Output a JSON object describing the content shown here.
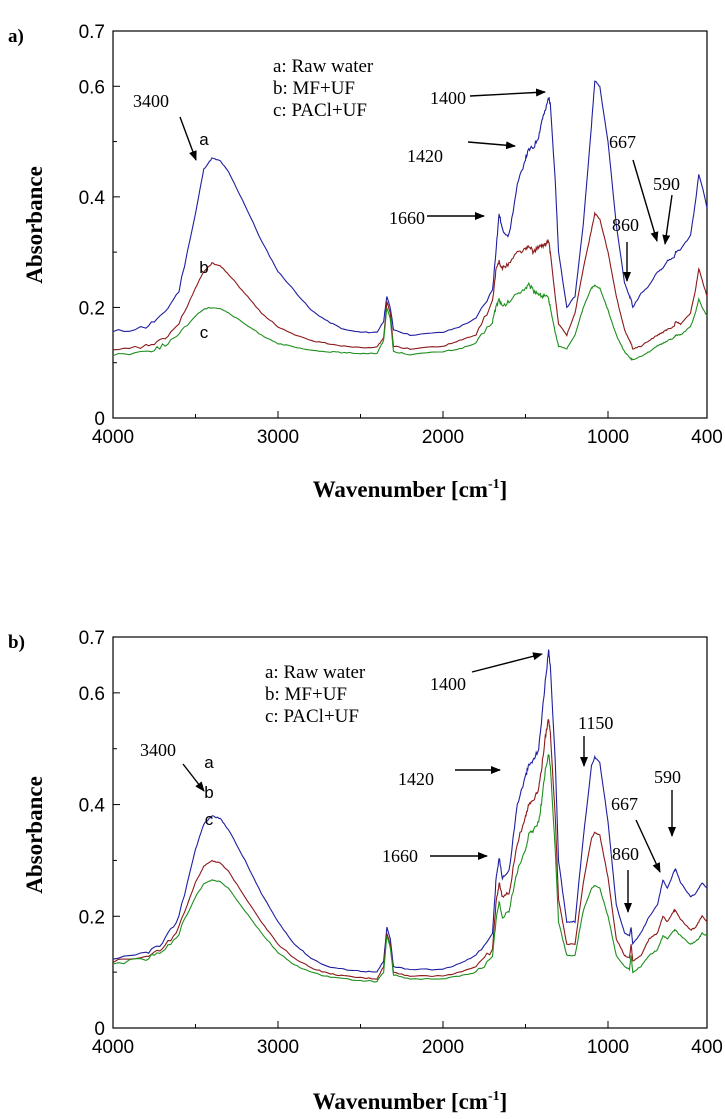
{
  "chart_data": [
    {
      "type": "line",
      "panel_label": "a)",
      "xlabel": "Wavenumber [cm",
      "xlabel_sup": "-1",
      "xlabel_end": "]",
      "ylabel": "Absorbance",
      "xlim": [
        4000,
        400
      ],
      "ylim": [
        0,
        0.7
      ],
      "x_ticks": [
        4000,
        3000,
        2000,
        1000,
        400
      ],
      "x_tick_labels": [
        "4000",
        "3000",
        "2000",
        "1000",
        "400"
      ],
      "y_ticks": [
        0,
        0.2,
        0.4,
        0.6,
        0.7
      ],
      "y_tick_labels": [
        "0",
        "0.2",
        "0.4",
        "0.6",
        "0.7"
      ],
      "grid": false,
      "legend": [
        "a: Raw water",
        "b: MF+UF",
        "c: PACl+UF"
      ],
      "curve_tags": [
        "a",
        "b",
        "c"
      ],
      "series": [
        {
          "name": "a: Raw water",
          "color": "#1f1fa0",
          "x": [
            4000,
            3800,
            3700,
            3600,
            3500,
            3450,
            3400,
            3350,
            3300,
            3200,
            3100,
            3000,
            2900,
            2800,
            2700,
            2600,
            2500,
            2400,
            2360,
            2340,
            2320,
            2300,
            2200,
            2000,
            1900,
            1800,
            1700,
            1680,
            1660,
            1640,
            1600,
            1550,
            1500,
            1480,
            1450,
            1420,
            1400,
            1380,
            1360,
            1350,
            1320,
            1300,
            1250,
            1200,
            1150,
            1100,
            1080,
            1050,
            1000,
            950,
            900,
            870,
            860,
            850,
            800,
            750,
            700,
            667,
            640,
            600,
            590,
            560,
            500,
            470,
            450,
            430,
            400
          ],
          "y": [
            0.155,
            0.165,
            0.185,
            0.23,
            0.37,
            0.45,
            0.47,
            0.465,
            0.445,
            0.385,
            0.32,
            0.265,
            0.23,
            0.195,
            0.175,
            0.16,
            0.155,
            0.155,
            0.175,
            0.22,
            0.2,
            0.16,
            0.15,
            0.155,
            0.165,
            0.18,
            0.23,
            0.3,
            0.37,
            0.34,
            0.33,
            0.42,
            0.47,
            0.485,
            0.49,
            0.51,
            0.54,
            0.555,
            0.58,
            0.57,
            0.43,
            0.3,
            0.2,
            0.22,
            0.35,
            0.53,
            0.61,
            0.6,
            0.5,
            0.35,
            0.245,
            0.22,
            0.215,
            0.2,
            0.225,
            0.24,
            0.265,
            0.27,
            0.285,
            0.29,
            0.3,
            0.305,
            0.33,
            0.39,
            0.44,
            0.42,
            0.38
          ]
        },
        {
          "name": "b: MF+UF",
          "color": "#8b1a1a",
          "x": [
            4000,
            3800,
            3700,
            3600,
            3500,
            3450,
            3400,
            3350,
            3300,
            3200,
            3100,
            3000,
            2900,
            2800,
            2700,
            2600,
            2500,
            2400,
            2360,
            2340,
            2320,
            2300,
            2200,
            2000,
            1900,
            1800,
            1700,
            1680,
            1660,
            1640,
            1600,
            1550,
            1500,
            1480,
            1450,
            1420,
            1400,
            1380,
            1360,
            1350,
            1320,
            1300,
            1250,
            1200,
            1150,
            1100,
            1080,
            1050,
            1000,
            950,
            900,
            870,
            860,
            850,
            800,
            750,
            700,
            667,
            640,
            600,
            590,
            560,
            500,
            470,
            450,
            430,
            400
          ],
          "y": [
            0.12,
            0.13,
            0.14,
            0.17,
            0.235,
            0.265,
            0.28,
            0.275,
            0.26,
            0.225,
            0.19,
            0.165,
            0.15,
            0.14,
            0.135,
            0.13,
            0.128,
            0.128,
            0.145,
            0.21,
            0.19,
            0.13,
            0.125,
            0.13,
            0.14,
            0.15,
            0.21,
            0.265,
            0.285,
            0.27,
            0.28,
            0.3,
            0.305,
            0.31,
            0.3,
            0.31,
            0.31,
            0.315,
            0.32,
            0.3,
            0.22,
            0.17,
            0.15,
            0.19,
            0.27,
            0.34,
            0.37,
            0.36,
            0.3,
            0.22,
            0.16,
            0.14,
            0.135,
            0.125,
            0.13,
            0.14,
            0.15,
            0.155,
            0.16,
            0.165,
            0.175,
            0.17,
            0.19,
            0.23,
            0.27,
            0.25,
            0.22
          ]
        },
        {
          "name": "c: PACl+UF",
          "color": "#1f8f1f",
          "x": [
            4000,
            3800,
            3700,
            3600,
            3500,
            3450,
            3400,
            3350,
            3300,
            3200,
            3100,
            3000,
            2900,
            2800,
            2700,
            2600,
            2500,
            2400,
            2360,
            2340,
            2320,
            2300,
            2200,
            2000,
            1900,
            1800,
            1700,
            1680,
            1660,
            1640,
            1600,
            1550,
            1500,
            1480,
            1450,
            1420,
            1400,
            1380,
            1360,
            1350,
            1320,
            1300,
            1250,
            1200,
            1150,
            1100,
            1080,
            1050,
            1000,
            950,
            900,
            870,
            860,
            850,
            800,
            750,
            700,
            667,
            640,
            600,
            590,
            560,
            500,
            470,
            450,
            430,
            400
          ],
          "y": [
            0.115,
            0.12,
            0.13,
            0.15,
            0.185,
            0.197,
            0.2,
            0.198,
            0.19,
            0.17,
            0.15,
            0.135,
            0.128,
            0.122,
            0.12,
            0.118,
            0.117,
            0.117,
            0.14,
            0.2,
            0.18,
            0.12,
            0.115,
            0.12,
            0.125,
            0.135,
            0.175,
            0.2,
            0.215,
            0.2,
            0.21,
            0.225,
            0.235,
            0.24,
            0.23,
            0.225,
            0.22,
            0.22,
            0.215,
            0.2,
            0.155,
            0.13,
            0.125,
            0.15,
            0.2,
            0.235,
            0.24,
            0.235,
            0.195,
            0.15,
            0.12,
            0.11,
            0.107,
            0.105,
            0.112,
            0.12,
            0.13,
            0.135,
            0.14,
            0.145,
            0.15,
            0.15,
            0.165,
            0.19,
            0.215,
            0.2,
            0.185
          ]
        }
      ],
      "annotations": [
        "3400",
        "1400",
        "1420",
        "1660",
        "667",
        "590",
        "860"
      ]
    },
    {
      "type": "line",
      "panel_label": "b)",
      "xlabel": "Wavenumber [cm",
      "xlabel_sup": "-1",
      "xlabel_end": "]",
      "ylabel": "Absorbance",
      "xlim": [
        4000,
        400
      ],
      "ylim": [
        0,
        0.7
      ],
      "x_ticks": [
        4000,
        3000,
        2000,
        1000,
        400
      ],
      "x_tick_labels": [
        "4000",
        "3000",
        "2000",
        "1000",
        "400"
      ],
      "y_ticks": [
        0,
        0.2,
        0.4,
        0.6,
        0.7
      ],
      "y_tick_labels": [
        "0",
        "0.2",
        "0.4",
        "0.6",
        "0.7"
      ],
      "grid": false,
      "legend": [
        "a: Raw water",
        "b: MF+UF",
        "c: PACl+UF"
      ],
      "curve_tags": [
        "a",
        "b",
        "c"
      ],
      "series": [
        {
          "name": "a: Raw water",
          "color": "#1f1fa0",
          "x": [
            4000,
            3800,
            3700,
            3600,
            3500,
            3450,
            3400,
            3350,
            3300,
            3200,
            3100,
            3000,
            2900,
            2800,
            2700,
            2600,
            2500,
            2400,
            2360,
            2340,
            2320,
            2300,
            2200,
            2000,
            1900,
            1800,
            1700,
            1680,
            1660,
            1640,
            1600,
            1550,
            1500,
            1480,
            1450,
            1420,
            1400,
            1380,
            1360,
            1350,
            1320,
            1300,
            1250,
            1200,
            1150,
            1100,
            1080,
            1050,
            1000,
            950,
            900,
            870,
            860,
            850,
            800,
            750,
            700,
            667,
            640,
            600,
            590,
            560,
            500,
            470,
            450,
            430,
            400
          ],
          "y": [
            0.12,
            0.135,
            0.15,
            0.2,
            0.32,
            0.365,
            0.38,
            0.375,
            0.355,
            0.3,
            0.24,
            0.19,
            0.15,
            0.125,
            0.11,
            0.105,
            0.102,
            0.1,
            0.12,
            0.18,
            0.16,
            0.11,
            0.105,
            0.105,
            0.115,
            0.13,
            0.17,
            0.26,
            0.305,
            0.27,
            0.28,
            0.4,
            0.45,
            0.47,
            0.48,
            0.5,
            0.56,
            0.62,
            0.675,
            0.65,
            0.48,
            0.3,
            0.19,
            0.19,
            0.34,
            0.47,
            0.485,
            0.475,
            0.37,
            0.22,
            0.17,
            0.165,
            0.18,
            0.15,
            0.17,
            0.2,
            0.22,
            0.265,
            0.25,
            0.28,
            0.285,
            0.26,
            0.235,
            0.24,
            0.25,
            0.26,
            0.25
          ]
        },
        {
          "name": "b: MF+UF",
          "color": "#8b1a1a",
          "x": [
            4000,
            3800,
            3700,
            3600,
            3500,
            3450,
            3400,
            3350,
            3300,
            3200,
            3100,
            3000,
            2900,
            2800,
            2700,
            2600,
            2500,
            2400,
            2360,
            2340,
            2320,
            2300,
            2200,
            2000,
            1900,
            1800,
            1700,
            1680,
            1660,
            1640,
            1600,
            1550,
            1500,
            1480,
            1450,
            1420,
            1400,
            1380,
            1360,
            1350,
            1320,
            1300,
            1250,
            1200,
            1150,
            1100,
            1080,
            1050,
            1000,
            950,
            900,
            870,
            860,
            850,
            800,
            750,
            700,
            667,
            640,
            600,
            590,
            560,
            500,
            470,
            450,
            430,
            400
          ],
          "y": [
            0.12,
            0.13,
            0.14,
            0.18,
            0.26,
            0.29,
            0.3,
            0.295,
            0.28,
            0.235,
            0.19,
            0.15,
            0.125,
            0.108,
            0.098,
            0.093,
            0.09,
            0.088,
            0.11,
            0.17,
            0.15,
            0.1,
            0.093,
            0.093,
            0.1,
            0.11,
            0.14,
            0.22,
            0.26,
            0.235,
            0.24,
            0.33,
            0.38,
            0.4,
            0.41,
            0.43,
            0.47,
            0.52,
            0.555,
            0.53,
            0.38,
            0.23,
            0.15,
            0.15,
            0.26,
            0.34,
            0.35,
            0.345,
            0.27,
            0.16,
            0.13,
            0.125,
            0.15,
            0.12,
            0.13,
            0.16,
            0.17,
            0.2,
            0.19,
            0.21,
            0.21,
            0.195,
            0.175,
            0.18,
            0.19,
            0.2,
            0.19
          ]
        },
        {
          "name": "c: PACl+UF",
          "color": "#1f8f1f",
          "x": [
            4000,
            3800,
            3700,
            3600,
            3500,
            3450,
            3400,
            3350,
            3300,
            3200,
            3100,
            3000,
            2900,
            2800,
            2700,
            2600,
            2500,
            2400,
            2360,
            2340,
            2320,
            2300,
            2200,
            2000,
            1900,
            1800,
            1700,
            1680,
            1660,
            1640,
            1600,
            1550,
            1500,
            1480,
            1450,
            1420,
            1400,
            1380,
            1360,
            1350,
            1320,
            1300,
            1250,
            1200,
            1150,
            1100,
            1080,
            1050,
            1000,
            950,
            900,
            870,
            860,
            850,
            800,
            750,
            700,
            667,
            640,
            600,
            590,
            560,
            500,
            470,
            450,
            430,
            400
          ],
          "y": [
            0.115,
            0.125,
            0.135,
            0.17,
            0.235,
            0.258,
            0.265,
            0.262,
            0.25,
            0.21,
            0.17,
            0.135,
            0.113,
            0.1,
            0.092,
            0.088,
            0.085,
            0.083,
            0.1,
            0.165,
            0.145,
            0.095,
            0.088,
            0.088,
            0.093,
            0.1,
            0.125,
            0.19,
            0.225,
            0.2,
            0.21,
            0.28,
            0.32,
            0.345,
            0.355,
            0.37,
            0.41,
            0.46,
            0.49,
            0.47,
            0.32,
            0.19,
            0.13,
            0.13,
            0.21,
            0.25,
            0.255,
            0.25,
            0.2,
            0.13,
            0.11,
            0.105,
            0.13,
            0.1,
            0.11,
            0.13,
            0.14,
            0.165,
            0.16,
            0.175,
            0.175,
            0.165,
            0.15,
            0.155,
            0.16,
            0.17,
            0.165
          ]
        }
      ],
      "annotations": [
        "3400",
        "1400",
        "1150",
        "1420",
        "1660",
        "667",
        "590",
        "860"
      ]
    }
  ]
}
